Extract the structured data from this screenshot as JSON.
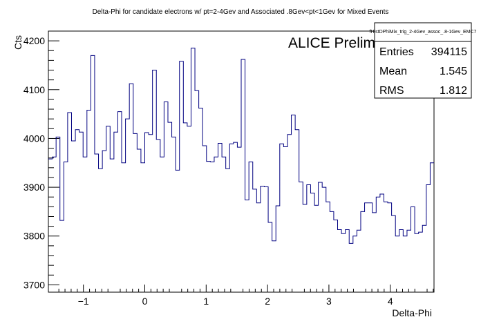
{
  "chart_data": {
    "type": "histogram",
    "title": "Delta-Phi for candidate electrons w/ pt=2-4Gev and Associated .8Gev<pt<1Gev for Mixed Events",
    "xlabel": "Delta-Phi",
    "ylabel": "Cts",
    "xlim": [
      -1.5708,
      4.7124
    ],
    "ylim": [
      3685,
      4220
    ],
    "x_ticks": [
      -1,
      0,
      1,
      2,
      3,
      4
    ],
    "y_ticks": [
      3700,
      3800,
      3900,
      4000,
      4100,
      4200
    ],
    "line_color": "#000080",
    "grid": false,
    "bin_count": 100,
    "values": [
      3958,
      3962,
      4003,
      3832,
      3952,
      4053,
      3995,
      4018,
      4013,
      3962,
      4058,
      4170,
      3968,
      3938,
      3975,
      4025,
      3958,
      4013,
      4055,
      3950,
      4040,
      4112,
      4010,
      3978,
      3950,
      4012,
      4008,
      4140,
      3998,
      3962,
      4075,
      4033,
      4003,
      3935,
      4158,
      4032,
      4025,
      4185,
      4098,
      4062,
      3985,
      3953,
      3952,
      3962,
      3990,
      3962,
      3938,
      3989,
      3992,
      3982,
      4162,
      3874,
      3952,
      3896,
      3868,
      3902,
      3901,
      3828,
      3790,
      3862,
      3989,
      3983,
      4008,
      4048,
      4018,
      3911,
      3865,
      3905,
      3888,
      3863,
      3910,
      3900,
      3870,
      3850,
      3833,
      3813,
      3805,
      3813,
      3785,
      3800,
      3812,
      3850,
      3868,
      3868,
      3848,
      3880,
      3886,
      3870,
      3868,
      3842,
      3800,
      3813,
      3800,
      3812,
      3860,
      3805,
      3808,
      3822,
      3905,
      3950
    ],
    "stats": {
      "name": "fHistDPhiMix_trig_2-4Gev_assoc_.8-1Gev_EMC7",
      "entries_label": "Entries",
      "entries": "394115",
      "mean_label": "Mean",
      "mean": "1.545",
      "rms_label": "RMS",
      "rms": "1.812"
    },
    "annotation": "ALICE Preliminary"
  }
}
